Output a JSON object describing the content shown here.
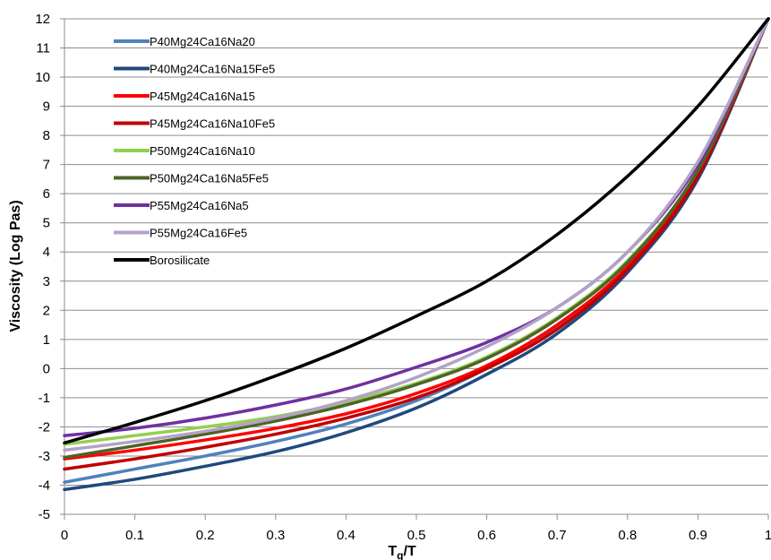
{
  "chart_data": {
    "type": "line",
    "xlabel": "Tg/T",
    "xlabel_main": "T",
    "xlabel_sub": "g",
    "xlabel_tail": "/T",
    "ylabel": "Viscosity (Log Pas)",
    "xlim": [
      0,
      1
    ],
    "ylim": [
      -5,
      12
    ],
    "x_ticks": [
      "0",
      "0.1",
      "0.2",
      "0.3",
      "0.4",
      "0.5",
      "0.6",
      "0.7",
      "0.8",
      "0.9",
      "1"
    ],
    "y_ticks": [
      "12",
      "11",
      "10",
      "9",
      "8",
      "7",
      "6",
      "5",
      "4",
      "3",
      "2",
      "1",
      "0",
      "-1",
      "-2",
      "-3",
      "-4",
      "-5"
    ],
    "grid": "horizontal",
    "legend_position": "top-left",
    "x": [
      0,
      0.1,
      0.2,
      0.3,
      0.4,
      0.5,
      0.6,
      0.7,
      0.8,
      0.9,
      1.0
    ],
    "series": [
      {
        "name": "P40Mg24Ca16Na20",
        "color": "#4f81bd",
        "values": [
          -3.9,
          -3.45,
          -3.0,
          -2.5,
          -1.9,
          -1.1,
          0.0,
          1.4,
          3.4,
          6.6,
          12
        ]
      },
      {
        "name": "P40Mg24Ca16Na15Fe5",
        "color": "#1f497d",
        "values": [
          -4.15,
          -3.8,
          -3.35,
          -2.85,
          -2.2,
          -1.35,
          -0.2,
          1.2,
          3.3,
          6.5,
          12
        ]
      },
      {
        "name": "P45Mg24Ca16Na15",
        "color": "#ff0000",
        "values": [
          -3.1,
          -2.8,
          -2.45,
          -2.05,
          -1.55,
          -0.85,
          0.1,
          1.5,
          3.5,
          6.7,
          12
        ]
      },
      {
        "name": "P45Mg24Ca16Na10Fe5",
        "color": "#c00000",
        "values": [
          -3.45,
          -3.1,
          -2.7,
          -2.25,
          -1.7,
          -1.0,
          0.0,
          1.35,
          3.4,
          6.6,
          12
        ]
      },
      {
        "name": "P50Mg24Ca16Na10",
        "color": "#92d050",
        "values": [
          -2.6,
          -2.3,
          -2.0,
          -1.65,
          -1.15,
          -0.5,
          0.4,
          1.75,
          3.7,
          6.8,
          12
        ]
      },
      {
        "name": "P50Mg24Ca16Na5Fe5",
        "color": "#4f6228",
        "values": [
          -3.05,
          -2.65,
          -2.25,
          -1.8,
          -1.25,
          -0.55,
          0.35,
          1.7,
          3.65,
          6.8,
          12
        ]
      },
      {
        "name": "P55Mg24Ca16Na5",
        "color": "#7030a0",
        "values": [
          -2.3,
          -2.05,
          -1.7,
          -1.25,
          -0.7,
          0.05,
          0.9,
          2.1,
          4.0,
          7.0,
          12
        ]
      },
      {
        "name": "P55Mg24Ca16Fe5",
        "color": "#b3a2c7",
        "values": [
          -2.8,
          -2.5,
          -2.15,
          -1.7,
          -1.1,
          -0.3,
          0.75,
          2.1,
          4.0,
          7.1,
          12
        ]
      },
      {
        "name": "Borosilicate",
        "color": "#000000",
        "values": [
          -2.55,
          -1.85,
          -1.1,
          -0.25,
          0.7,
          1.8,
          3.0,
          4.6,
          6.6,
          9.0,
          12
        ]
      }
    ]
  }
}
